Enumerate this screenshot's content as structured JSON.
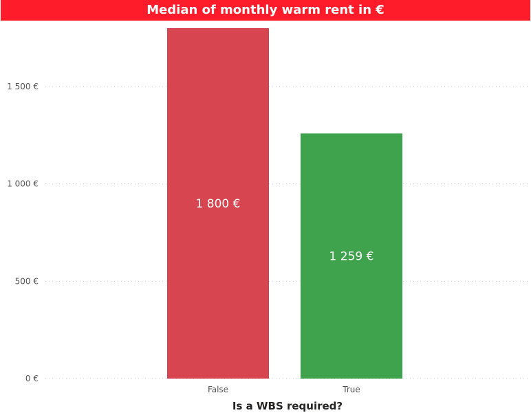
{
  "chart_data": {
    "type": "bar",
    "title": "Median of monthly warm rent in €",
    "xlabel": "Is a WBS required?",
    "ylabel": "",
    "categories": [
      "False",
      "True"
    ],
    "values": [
      1800,
      1259
    ],
    "data_labels": [
      "1 800 €",
      "1 259 €"
    ],
    "ylim": [
      0,
      1800
    ],
    "y_ticks": [
      0,
      500,
      1000,
      1500
    ],
    "y_tick_labels": [
      "0 €",
      "500 €",
      "1 000 €",
      "1 500 €"
    ],
    "grid": true,
    "bar_colors": [
      "#d64550",
      "#3fa34d"
    ],
    "gridline_color": "#c8c8c8"
  }
}
